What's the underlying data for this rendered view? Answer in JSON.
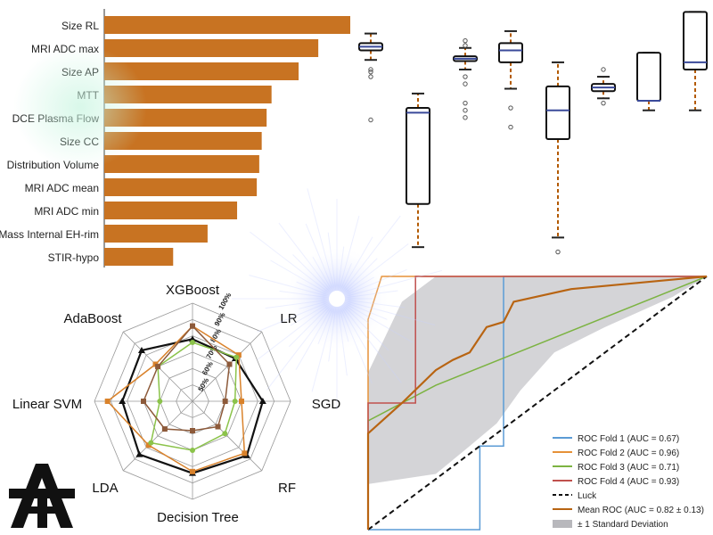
{
  "colors": {
    "bar": "#c87322",
    "fold1": "#5b9bd5",
    "fold2": "#e69138",
    "fold3": "#7cb342",
    "fold4": "#c0504d",
    "mean": "#b86412",
    "std": "#b8b8bc",
    "box_whisker": "#b35a00",
    "radar_black": "#111111",
    "radar_orange": "#d9822b",
    "radar_green": "#8bc34a",
    "radar_brown": "#8d5a3a"
  },
  "logo": {
    "text": "AT"
  },
  "chart_data": [
    {
      "type": "bar",
      "orientation": "horizontal",
      "categories": [
        "Size RL",
        "MRI ADC max",
        "Size AP",
        "MTT",
        "DCE Plasma Flow",
        "Size CC",
        "Distribution Volume",
        "MRI ADC mean",
        "MRI ADC min",
        "Mass Internal EH-rim",
        "STIR-hypo"
      ],
      "values": [
        100,
        87,
        79,
        68,
        66,
        64,
        63,
        62,
        54,
        42,
        28
      ],
      "xlim": [
        0,
        100
      ]
    },
    {
      "type": "box",
      "boxes": [
        {
          "q1": 0.84,
          "median": 0.855,
          "q3": 0.87,
          "whisker_low": 0.8,
          "whisker_high": 0.91,
          "outliers": [
            0.76,
            0.75,
            0.73,
            0.55
          ]
        },
        {
          "q1": 0.2,
          "median": 0.58,
          "q3": 0.6,
          "whisker_low": 0.02,
          "whisker_high": 0.66,
          "outliers": []
        },
        {
          "q1": 0.795,
          "median": 0.805,
          "q3": 0.815,
          "whisker_low": 0.76,
          "whisker_high": 0.85,
          "outliers": [
            0.88,
            0.86,
            0.73,
            0.7,
            0.62,
            0.59,
            0.56
          ]
        },
        {
          "q1": 0.79,
          "median": 0.84,
          "q3": 0.87,
          "whisker_low": 0.68,
          "whisker_high": 0.92,
          "outliers": [
            0.6,
            0.52
          ]
        },
        {
          "q1": 0.47,
          "median": 0.59,
          "q3": 0.69,
          "whisker_low": 0.06,
          "whisker_high": 0.79,
          "outliers": [
            0.0
          ]
        },
        {
          "q1": 0.67,
          "median": 0.685,
          "q3": 0.7,
          "whisker_low": 0.64,
          "whisker_high": 0.73,
          "outliers": [
            0.76,
            0.62
          ]
        },
        {
          "q1": 0.63,
          "median": 0.63,
          "q3": 0.83,
          "whisker_low": 0.59,
          "whisker_high": 0.83,
          "outliers": []
        },
        {
          "q1": 0.76,
          "median": 0.79,
          "q3": 1.0,
          "whisker_low": 0.59,
          "whisker_high": 1.0,
          "outliers": []
        }
      ],
      "ylim": [
        -0.05,
        1.02
      ]
    },
    {
      "type": "radar",
      "axes": [
        "XGBoost",
        "LR",
        "SGD",
        "RF",
        "Decision Tree",
        "LDA",
        "Linear SVM",
        "AdaBoost"
      ],
      "ticks": [
        "50%",
        "60%",
        "70%",
        "80%",
        "90%",
        "100%"
      ],
      "range": [
        40,
        100
      ],
      "series": [
        {
          "color_key": "radar_black",
          "values": [
            78,
            77,
            83,
            87,
            84,
            86,
            83,
            84
          ]
        },
        {
          "color_key": "radar_orange",
          "values": [
            86,
            80,
            70,
            85,
            83,
            78,
            92,
            72
          ]
        },
        {
          "color_key": "radar_green",
          "values": [
            76,
            78,
            66,
            68,
            70,
            76,
            60,
            70
          ]
        },
        {
          "color_key": "radar_brown",
          "values": [
            86,
            72,
            60,
            62,
            58,
            64,
            70,
            70
          ]
        }
      ]
    },
    {
      "type": "line",
      "xlim": [
        0,
        1
      ],
      "ylim": [
        0,
        1
      ],
      "series": [
        {
          "key": "fold1",
          "name": "ROC Fold 1 (AUC = 0.67)",
          "points": [
            [
              0,
              0
            ],
            [
              0.0,
              0.0
            ],
            [
              0.33,
              0.0
            ],
            [
              0.33,
              0.33
            ],
            [
              0.4,
              0.33
            ],
            [
              0.4,
              0.67
            ],
            [
              0.4,
              1.0
            ],
            [
              1,
              1
            ]
          ]
        },
        {
          "key": "fold2",
          "name": "ROC Fold 2 (AUC = 0.96)",
          "points": [
            [
              0,
              0
            ],
            [
              0,
              0.5
            ],
            [
              0,
              0.83
            ],
            [
              0.04,
              1.0
            ],
            [
              1,
              1
            ]
          ]
        },
        {
          "key": "fold3",
          "name": "ROC Fold 3 (AUC = 0.71)",
          "points": [
            [
              0,
              0
            ],
            [
              0,
              0.43
            ],
            [
              0.2,
              0.57
            ],
            [
              1,
              1
            ]
          ]
        },
        {
          "key": "fold4",
          "name": "ROC Fold 4 (AUC = 0.93)",
          "points": [
            [
              0,
              0
            ],
            [
              0,
              0.5
            ],
            [
              0.14,
              0.5
            ],
            [
              0.14,
              1.0
            ],
            [
              1,
              1
            ]
          ]
        },
        {
          "key": "luck",
          "name": "Luck",
          "dashed": true,
          "points": [
            [
              0,
              0
            ],
            [
              1,
              1
            ]
          ]
        },
        {
          "key": "mean",
          "name": "Mean ROC (AUC = 0.82 ± 0.13)",
          "points": [
            [
              0,
              0
            ],
            [
              0,
              0.38
            ],
            [
              0.1,
              0.5
            ],
            [
              0.2,
              0.63
            ],
            [
              0.25,
              0.67
            ],
            [
              0.3,
              0.7
            ],
            [
              0.35,
              0.8
            ],
            [
              0.4,
              0.82
            ],
            [
              0.43,
              0.9
            ],
            [
              0.6,
              0.95
            ],
            [
              1,
              1
            ]
          ]
        }
      ],
      "band": {
        "name": "± 1 Standard Deviation",
        "upper": [
          [
            0,
            0.62
          ],
          [
            0.1,
            0.9
          ],
          [
            0.2,
            1.0
          ],
          [
            1,
            1
          ]
        ],
        "lower": [
          [
            0,
            0.18
          ],
          [
            0.2,
            0.22
          ],
          [
            0.3,
            0.33
          ],
          [
            0.38,
            0.42
          ],
          [
            0.45,
            0.55
          ],
          [
            0.55,
            0.7
          ],
          [
            0.7,
            0.8
          ],
          [
            0.9,
            0.92
          ],
          [
            1,
            1
          ]
        ]
      }
    }
  ]
}
